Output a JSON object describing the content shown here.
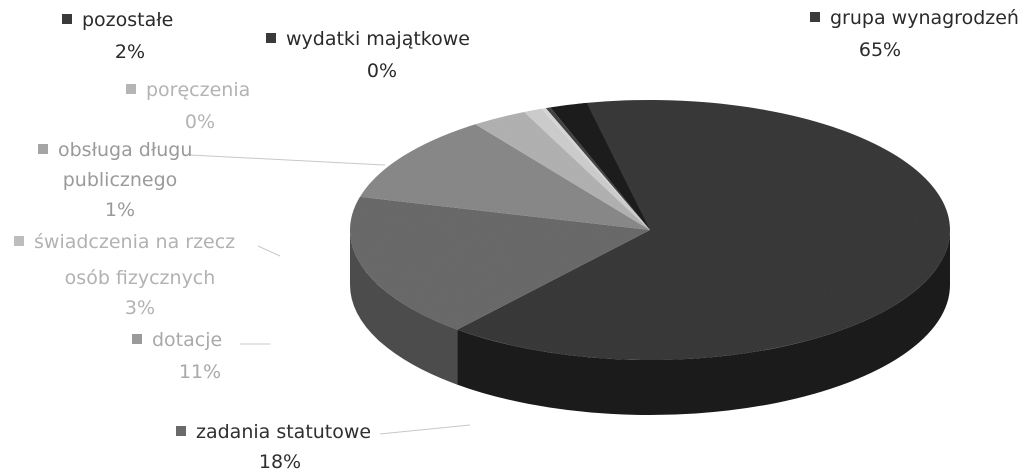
{
  "chart_data": {
    "type": "pie",
    "title": "",
    "style": "3d",
    "legend_placement": "inline labels",
    "slices": [
      {
        "name": "grupa wynagrodzeń",
        "value": 65,
        "label": "65%",
        "color": "#3a3a3a",
        "side_color": "#1b1b1b",
        "text_color": "#2a2a2a",
        "marker_color": "#3a3a3a"
      },
      {
        "name": "zadania statutowe",
        "value": 18,
        "label": "18%",
        "color": "#6b6b6b",
        "side_color": "#4c4c4c",
        "text_color": "#2f2f2f",
        "marker_color": "#6a6a6a"
      },
      {
        "name": "dotacje",
        "value": 11,
        "label": "11%",
        "color": "#8a8a8a",
        "side_color": "#6a6a6a",
        "text_color": "#a9a9a9",
        "marker_color": "#9a9a9a"
      },
      {
        "name": "świadczenia na rzecz osób fizycznych",
        "value": 3,
        "label": "3%",
        "color": "#b3b3b3",
        "side_color": "#909090",
        "text_color": "#b2b2b2",
        "marker_color": "#bdbdbd"
      },
      {
        "name": "obsługa długu publicznego",
        "value": 1,
        "label": "1%",
        "color": "#cfcfcf",
        "side_color": "#a8a8a8",
        "text_color": "#9a9a9a",
        "marker_color": "#a5a5a5"
      },
      {
        "name": "poręczenia",
        "value": 0,
        "label": "0%",
        "color": "#d9d9d9",
        "side_color": "#b0b0b0",
        "text_color": "#b3b3b3",
        "marker_color": "#b5b5b5"
      },
      {
        "name": "wydatki majątkowe",
        "value": 0,
        "label": "0%",
        "color": "#444444",
        "side_color": "#222222",
        "text_color": "#2a2a2a",
        "marker_color": "#3a3a3a"
      },
      {
        "name": "pozostałe",
        "value": 2,
        "label": "2%",
        "color": "#1e1e1e",
        "side_color": "#0a0a0a",
        "text_color": "#2a2a2a",
        "marker_color": "#3a3a3a"
      }
    ]
  }
}
